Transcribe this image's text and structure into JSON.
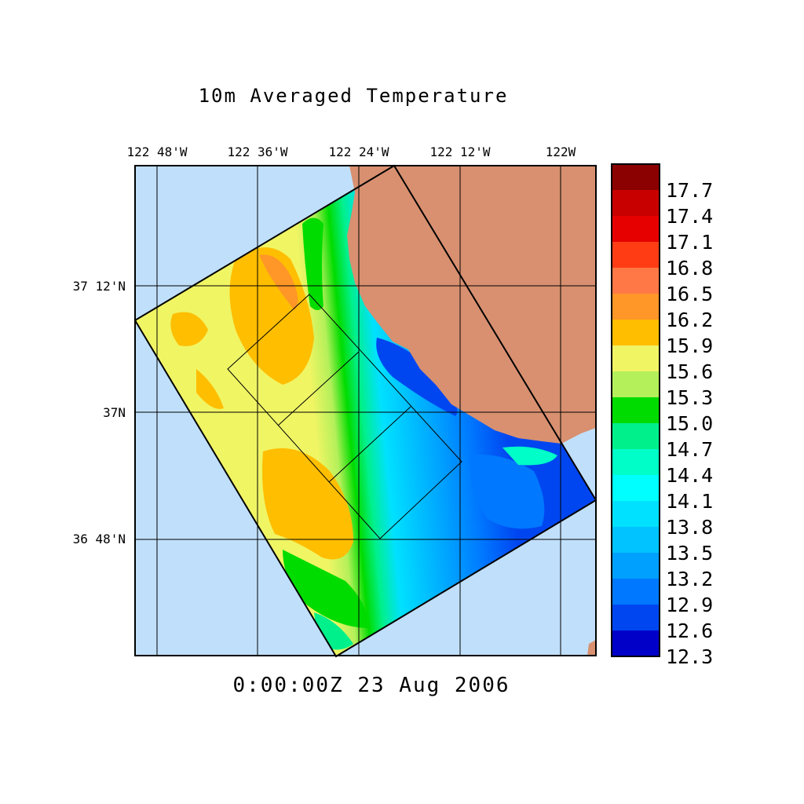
{
  "title": "10m Averaged Temperature",
  "timestamp": "0:00:00Z  23 Aug 2006",
  "lon_labels": [
    "122 48'W",
    "122 36'W",
    "122 24'W",
    "122 12'W",
    "122W"
  ],
  "lat_labels": [
    "37 12'N",
    "37N",
    "36 48'N"
  ],
  "colorbar": {
    "labels": [
      "17.7",
      "17.4",
      "17.1",
      "16.8",
      "16.5",
      "16.2",
      "15.9",
      "15.6",
      "15.3",
      "15.0",
      "14.7",
      "14.4",
      "14.1",
      "13.8",
      "13.5",
      "13.2",
      "12.9",
      "12.6",
      "12.3"
    ],
    "colors": [
      "#8b0000",
      "#c80000",
      "#e60000",
      "#ff3c14",
      "#ff7846",
      "#ff9628",
      "#ffbe00",
      "#f0f564",
      "#b4f05a",
      "#00dc00",
      "#00f08c",
      "#00ffc8",
      "#00ffff",
      "#00e1ff",
      "#00c3ff",
      "#00a0ff",
      "#0078ff",
      "#0046f0",
      "#0000c8"
    ]
  },
  "colors": {
    "ocean": "#c0dffa",
    "land": "#d89070",
    "frame": "#000000"
  }
}
